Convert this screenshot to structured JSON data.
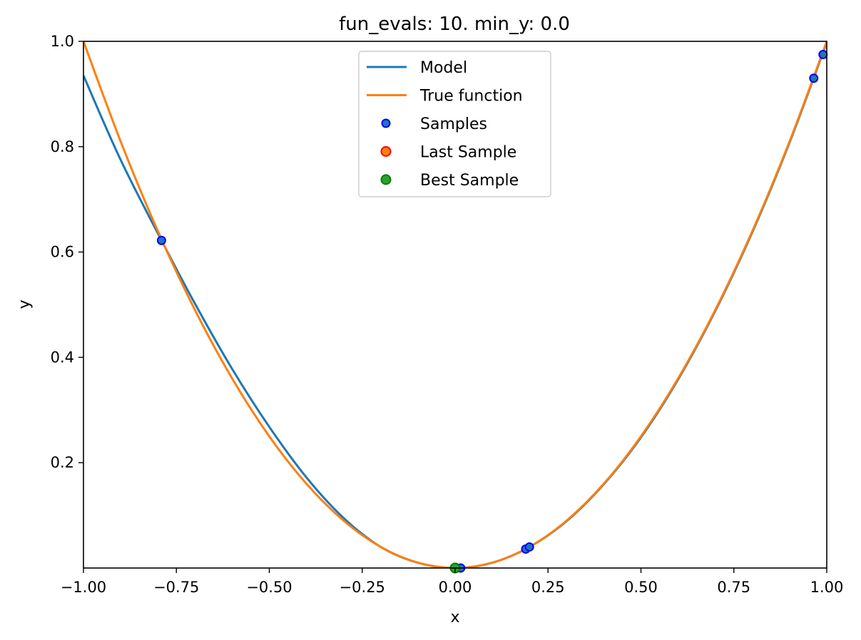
{
  "chart_data": {
    "type": "line",
    "title": "fun_evals: 10. min_y: 0.0",
    "xlabel": "x",
    "ylabel": "y",
    "xlim": [
      -1.0,
      1.0
    ],
    "ylim": [
      0.0,
      1.0
    ],
    "grid": false,
    "legend_placement": "upper-center",
    "x_ticks": [
      -1.0,
      -0.75,
      -0.5,
      -0.25,
      0.0,
      0.25,
      0.5,
      0.75,
      1.0
    ],
    "x_tick_labels": [
      "−1.00",
      "−0.75",
      "−0.50",
      "−0.25",
      "0.00",
      "0.25",
      "0.50",
      "0.75",
      "1.00"
    ],
    "y_ticks": [
      0.2,
      0.4,
      0.6,
      0.8,
      1.0
    ],
    "y_tick_labels": [
      "0.2",
      "0.4",
      "0.6",
      "0.8",
      "1.0"
    ],
    "series": [
      {
        "name": "Model",
        "kind": "line",
        "color": "#1f77b4",
        "x": [
          -1.0,
          -0.9,
          -0.79,
          -0.7,
          -0.6,
          -0.5,
          -0.4,
          -0.3,
          -0.2,
          -0.1,
          0.0,
          0.1,
          0.2,
          0.3,
          0.4,
          0.5,
          0.6,
          0.7,
          0.8,
          0.9,
          1.0
        ],
        "y": [
          0.935,
          0.775,
          0.622,
          0.502,
          0.378,
          0.268,
          0.172,
          0.095,
          0.04,
          0.01,
          0.0,
          0.01,
          0.04,
          0.089,
          0.159,
          0.248,
          0.358,
          0.488,
          0.638,
          0.808,
          0.998
        ]
      },
      {
        "name": "True function",
        "kind": "line",
        "color": "#ff7f0e",
        "function": "x^2",
        "x": [
          -1.0,
          -0.9,
          -0.8,
          -0.7,
          -0.6,
          -0.5,
          -0.4,
          -0.3,
          -0.2,
          -0.1,
          0.0,
          0.1,
          0.2,
          0.3,
          0.4,
          0.5,
          0.6,
          0.7,
          0.8,
          0.9,
          1.0
        ],
        "y": [
          1.0,
          0.81,
          0.64,
          0.49,
          0.36,
          0.25,
          0.16,
          0.09,
          0.04,
          0.01,
          0.0,
          0.01,
          0.04,
          0.09,
          0.16,
          0.25,
          0.36,
          0.49,
          0.64,
          0.81,
          1.0
        ]
      },
      {
        "name": "Samples",
        "kind": "scatter",
        "color": "#1f77b4",
        "edgecolor": "#0000ff",
        "x": [
          -0.79,
          0.0,
          0.015,
          0.19,
          0.2,
          0.965,
          0.99
        ],
        "y": [
          0.622,
          0.0,
          0.0,
          0.036,
          0.04,
          0.93,
          0.975
        ]
      },
      {
        "name": "Last Sample",
        "kind": "scatter",
        "color": "#ff7f0e",
        "edgecolor": "#ff0000",
        "x": [
          0.0
        ],
        "y": [
          0.0
        ]
      },
      {
        "name": "Best Sample",
        "kind": "scatter",
        "color": "#2ca02c",
        "edgecolor": "#008000",
        "x": [
          0.0
        ],
        "y": [
          0.0
        ]
      }
    ]
  }
}
